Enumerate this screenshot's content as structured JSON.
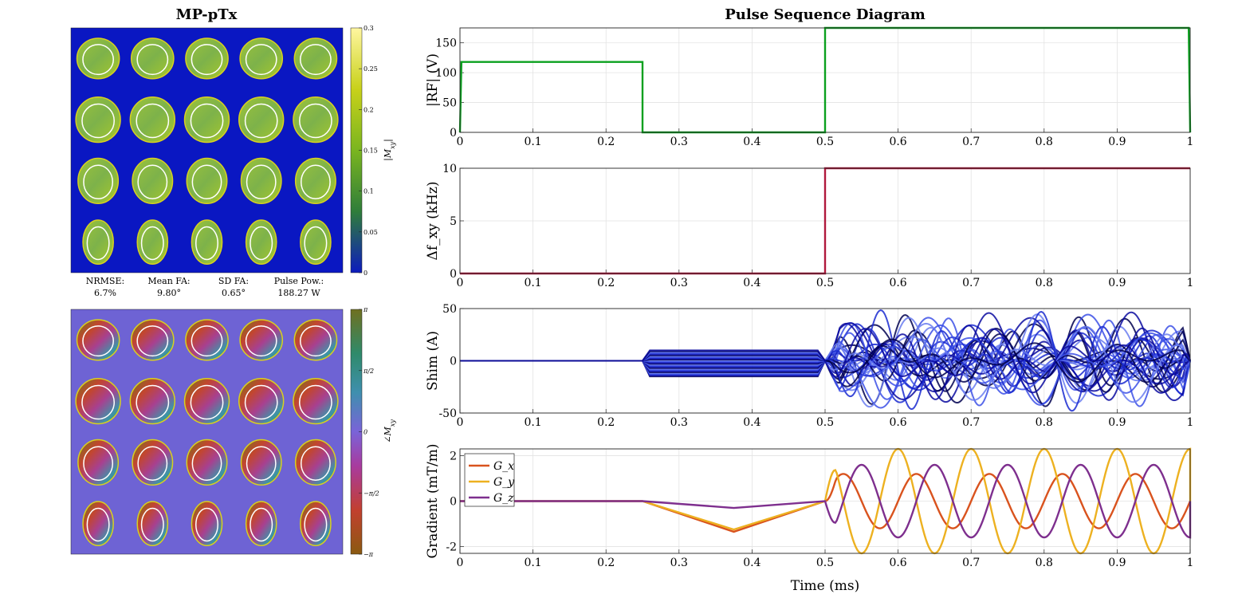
{
  "left_panel": {
    "title": "MP-pTx",
    "grid_rows": 4,
    "grid_cols": 5,
    "magnitude_colorbar": {
      "label": "|M_xy|",
      "ticks": [
        "0",
        "0.05",
        "0.1",
        "0.15",
        "0.2",
        "0.25",
        "0.3"
      ],
      "range": [
        0,
        0.3
      ],
      "colors": [
        "#0d1bbd",
        "#2f7d3a",
        "#7ab51f",
        "#c8d11a",
        "#fff6a0"
      ]
    },
    "phase_colorbar": {
      "label": "∠M_xy",
      "ticks": [
        "π",
        "π/2",
        "0",
        "−π/2",
        "−π"
      ],
      "range": [
        "−π",
        "π"
      ],
      "colors": [
        "#8a5a10",
        "#c2402f",
        "#a83b9e",
        "#7a63d8",
        "#3f8fae",
        "#2f8a6a",
        "#6f7020"
      ]
    },
    "stats": [
      {
        "label": "NRMSE:",
        "value": "6.7%"
      },
      {
        "label": "Mean FA:",
        "value": "9.80°"
      },
      {
        "label": "SD FA:",
        "value": "0.65°"
      },
      {
        "label": "Pulse Pow.:",
        "value": "188.27 W"
      }
    ],
    "colors": {
      "background_mag": "#0a17c2",
      "background_phase": "#6e63d4",
      "contour": "#ffffff"
    }
  },
  "right_panel": {
    "title": "Pulse Sequence Diagram",
    "xlabel": "Time (ms)"
  },
  "chart_data": [
    {
      "type": "line",
      "ylabel": "|RF| (V)",
      "xlim": [
        0,
        1
      ],
      "ylim": [
        0,
        175
      ],
      "xticks": [
        "0",
        "0.1",
        "0.2",
        "0.3",
        "0.4",
        "0.5",
        "0.6",
        "0.7",
        "0.8",
        "0.9",
        "1"
      ],
      "yticks": [
        "0",
        "50",
        "100",
        "150"
      ],
      "grid": true,
      "series": [
        {
          "color": "#0aa01e",
          "x": [
            0,
            0.002,
            0.25,
            0.25,
            0.5,
            0.5,
            0.998,
            1
          ],
          "y": [
            0,
            118,
            118,
            0,
            0,
            175,
            175,
            0
          ]
        }
      ]
    },
    {
      "type": "line",
      "ylabel": "Δf_xy (kHz)",
      "xlim": [
        0,
        1
      ],
      "ylim": [
        0,
        10
      ],
      "xticks": [
        "0",
        "0.1",
        "0.2",
        "0.3",
        "0.4",
        "0.5",
        "0.6",
        "0.7",
        "0.8",
        "0.9",
        "1"
      ],
      "yticks": [
        "0",
        "5",
        "10"
      ],
      "grid": true,
      "series": [
        {
          "color": "#b0183c",
          "x": [
            0,
            0.5,
            0.5,
            1
          ],
          "y": [
            0,
            0,
            10,
            10
          ]
        }
      ]
    },
    {
      "type": "line",
      "ylabel": "Shim (A)",
      "xlim": [
        0,
        1
      ],
      "ylim": [
        -50,
        50
      ],
      "xticks": [
        "0",
        "0.1",
        "0.2",
        "0.3",
        "0.4",
        "0.5",
        "0.6",
        "0.7",
        "0.8",
        "0.9",
        "1"
      ],
      "yticks": [
        "-50",
        "0",
        "50"
      ],
      "grid": true,
      "n_channels": 32,
      "segments": [
        {
          "phase": "zero",
          "x": [
            0,
            0.25
          ]
        },
        {
          "phase": "trapezoid",
          "x": [
            0.25,
            0.5
          ],
          "min": -15,
          "max": 10
        },
        {
          "phase": "oscillating",
          "x": [
            0.5,
            1
          ],
          "amplitude": 50
        }
      ],
      "colors": [
        "#000050",
        "#0a0aa0",
        "#1a2ad0",
        "#3c50e6",
        "#6a7cf0"
      ]
    },
    {
      "type": "line",
      "ylabel": "Gradient (mT/m)",
      "xlabel": "Time (ms)",
      "xlim": [
        0,
        1
      ],
      "ylim": [
        -2.3,
        2.3
      ],
      "xticks": [
        "0",
        "0.1",
        "0.2",
        "0.3",
        "0.4",
        "0.5",
        "0.6",
        "0.7",
        "0.8",
        "0.9",
        "1"
      ],
      "yticks": [
        "-2",
        "0",
        "2"
      ],
      "grid": true,
      "legend": "top-left",
      "series": [
        {
          "name": "G_x",
          "color": "#d9531e",
          "blip": {
            "x": [
              0.25,
              0.375,
              0.5
            ],
            "y": [
              0,
              -1.35,
              0
            ]
          },
          "osc": {
            "amp": 1.2,
            "period": 0.1,
            "phase": 0.0
          }
        },
        {
          "name": "G_y",
          "color": "#edb120",
          "blip": {
            "x": [
              0.25,
              0.375,
              0.5
            ],
            "y": [
              0,
              -1.25,
              0
            ]
          },
          "osc": {
            "amp": 2.3,
            "period": 0.1,
            "phase": 0.25
          }
        },
        {
          "name": "G_z",
          "color": "#7e2f8e",
          "blip": {
            "x": [
              0.25,
              0.375,
              0.5
            ],
            "y": [
              0,
              -0.3,
              0
            ]
          },
          "osc": {
            "amp": 1.6,
            "period": 0.1,
            "phase": 0.75
          }
        }
      ]
    }
  ]
}
